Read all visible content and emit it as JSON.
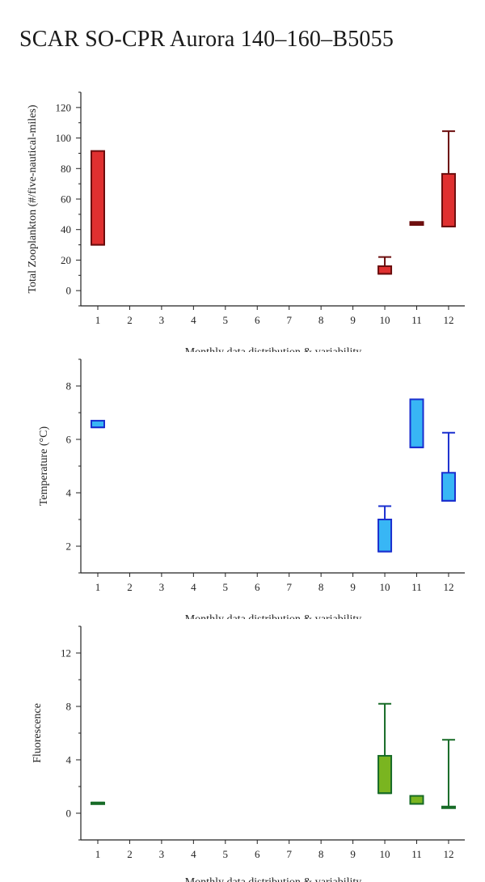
{
  "page": {
    "title": "SCAR SO-CPR Aurora 140–160–B5055"
  },
  "chart_data": [
    {
      "type": "box",
      "ylabel": "Total Zooplankton (#/five-nautical-miles)",
      "xlabel": "Monthly data distribution & variability",
      "categories": [
        "1",
        "2",
        "3",
        "4",
        "5",
        "6",
        "7",
        "8",
        "9",
        "10",
        "11",
        "12"
      ],
      "ylim": [
        -10,
        130
      ],
      "yticks": [
        0,
        20,
        40,
        60,
        80,
        100,
        120
      ],
      "color": "#e03030",
      "stroke": "#6b0d0d",
      "boxes": [
        {
          "month": 1,
          "q1": 30,
          "q3": 91.5,
          "median": 30,
          "whisker_low": 30,
          "whisker_high": 91.5
        },
        {
          "month": 10,
          "q1": 11,
          "q3": 16,
          "median": 11,
          "whisker_low": 11,
          "whisker_high": 22
        },
        {
          "month": 11,
          "q1": 43,
          "q3": 45,
          "median": 44,
          "whisker_low": 43,
          "whisker_high": 45
        },
        {
          "month": 12,
          "q1": 42,
          "q3": 76.5,
          "median": 42,
          "whisker_low": 42,
          "whisker_high": 104.5
        }
      ]
    },
    {
      "type": "box",
      "ylabel": "Temperature (°C)",
      "xlabel": "Monthly data distribution & variability",
      "categories": [
        "1",
        "2",
        "3",
        "4",
        "5",
        "6",
        "7",
        "8",
        "9",
        "10",
        "11",
        "12"
      ],
      "ylim": [
        1,
        9
      ],
      "yticks": [
        2,
        4,
        6,
        8
      ],
      "color": "#38b6f5",
      "stroke": "#1a2fcf",
      "boxes": [
        {
          "month": 1,
          "q1": 6.45,
          "q3": 6.7,
          "median": 6.45,
          "whisker_low": 6.45,
          "whisker_high": 6.7
        },
        {
          "month": 10,
          "q1": 1.8,
          "q3": 3.0,
          "median": 1.8,
          "whisker_low": 1.8,
          "whisker_high": 3.5
        },
        {
          "month": 11,
          "q1": 5.7,
          "q3": 7.5,
          "median": 5.7,
          "whisker_low": 5.7,
          "whisker_high": 7.5
        },
        {
          "month": 12,
          "q1": 3.7,
          "q3": 4.75,
          "median": 3.7,
          "whisker_low": 3.7,
          "whisker_high": 6.25
        }
      ]
    },
    {
      "type": "box",
      "ylabel": "Fluorescence",
      "xlabel": "Monthly data distribution & variability",
      "categories": [
        "1",
        "2",
        "3",
        "4",
        "5",
        "6",
        "7",
        "8",
        "9",
        "10",
        "11",
        "12"
      ],
      "ylim": [
        -2,
        14
      ],
      "yticks": [
        0,
        4,
        8,
        12
      ],
      "color": "#7ab520",
      "stroke": "#176b27",
      "boxes": [
        {
          "month": 1,
          "q1": 0.8,
          "q3": 0.8,
          "median": 0.8,
          "whisker_low": 0.8,
          "whisker_high": 0.8
        },
        {
          "month": 10,
          "q1": 1.5,
          "q3": 4.3,
          "median": 1.5,
          "whisker_low": 1.5,
          "whisker_high": 8.2
        },
        {
          "month": 11,
          "q1": 0.7,
          "q3": 1.3,
          "median": 0.7,
          "whisker_low": 0.7,
          "whisker_high": 1.3
        },
        {
          "month": 12,
          "q1": 0.4,
          "q3": 0.5,
          "median": 0.4,
          "whisker_low": 0.4,
          "whisker_high": 5.5
        }
      ]
    }
  ]
}
